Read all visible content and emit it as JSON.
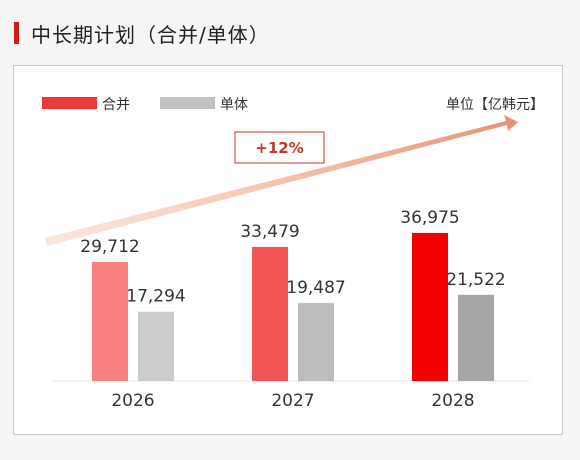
{
  "title": "中长期计划（合并/单体）",
  "unit_label": "单位【亿韩元】",
  "growth_label": "+12%",
  "colors": {
    "accent": "#d21a1a",
    "consolidated": [
      "#f98080",
      "#f25555",
      "#f20000"
    ],
    "standalone": [
      "#cccccc",
      "#bdbdbd",
      "#a6a6a6"
    ],
    "legend_consolidated": "#e83a3a",
    "legend_standalone": "#c2c2c2"
  },
  "chart_data": {
    "type": "bar",
    "categories": [
      "2026",
      "2027",
      "2028"
    ],
    "series": [
      {
        "name": "合并",
        "values": [
          29712,
          33479,
          36975
        ],
        "labels": [
          "29,712",
          "33,479",
          "36,975"
        ]
      },
      {
        "name": "单体",
        "values": [
          17294,
          19487,
          21522
        ],
        "labels": [
          "17,294",
          "19,487",
          "21,522"
        ]
      }
    ],
    "legend_position": "top-left",
    "grid": false
  }
}
